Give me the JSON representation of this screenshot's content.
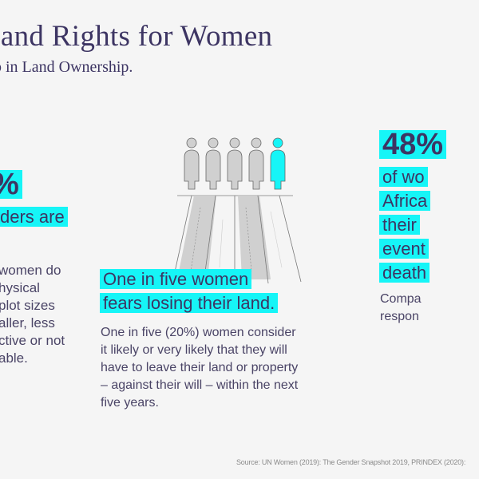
{
  "header": {
    "title": "Land Rights for Women",
    "subtitle": "p in Land Ownership."
  },
  "left_stat": {
    "value": "%",
    "highlight_lines": [
      "ders are"
    ],
    "body_lines": [
      "women do",
      "hysical",
      " plot sizes",
      "aller, less",
      "ctive or not",
      "able."
    ]
  },
  "center_stat": {
    "headline_lines": [
      "One in five women",
      "fears losing their land."
    ],
    "body_lines": [
      "One in five (20%) women consider",
      "it likely or very likely that they will",
      "have to leave their land or property",
      "– against their will – within the next",
      "five years."
    ],
    "figures_total": 5,
    "figures_highlighted": 1
  },
  "right_stat": {
    "value": "48%",
    "highlight_lines": [
      "of wo",
      "Africa",
      "their",
      "event",
      "death"
    ],
    "body_lines": [
      "Compa",
      "respon"
    ]
  },
  "footer": {
    "source": "Source: UN Women (2019): The Gender Snapshot 2019, PRINDEX (2020): "
  },
  "colors": {
    "accent": "#16f5f7",
    "text": "#3d3563",
    "figure_gray": "#d0d0d0"
  }
}
